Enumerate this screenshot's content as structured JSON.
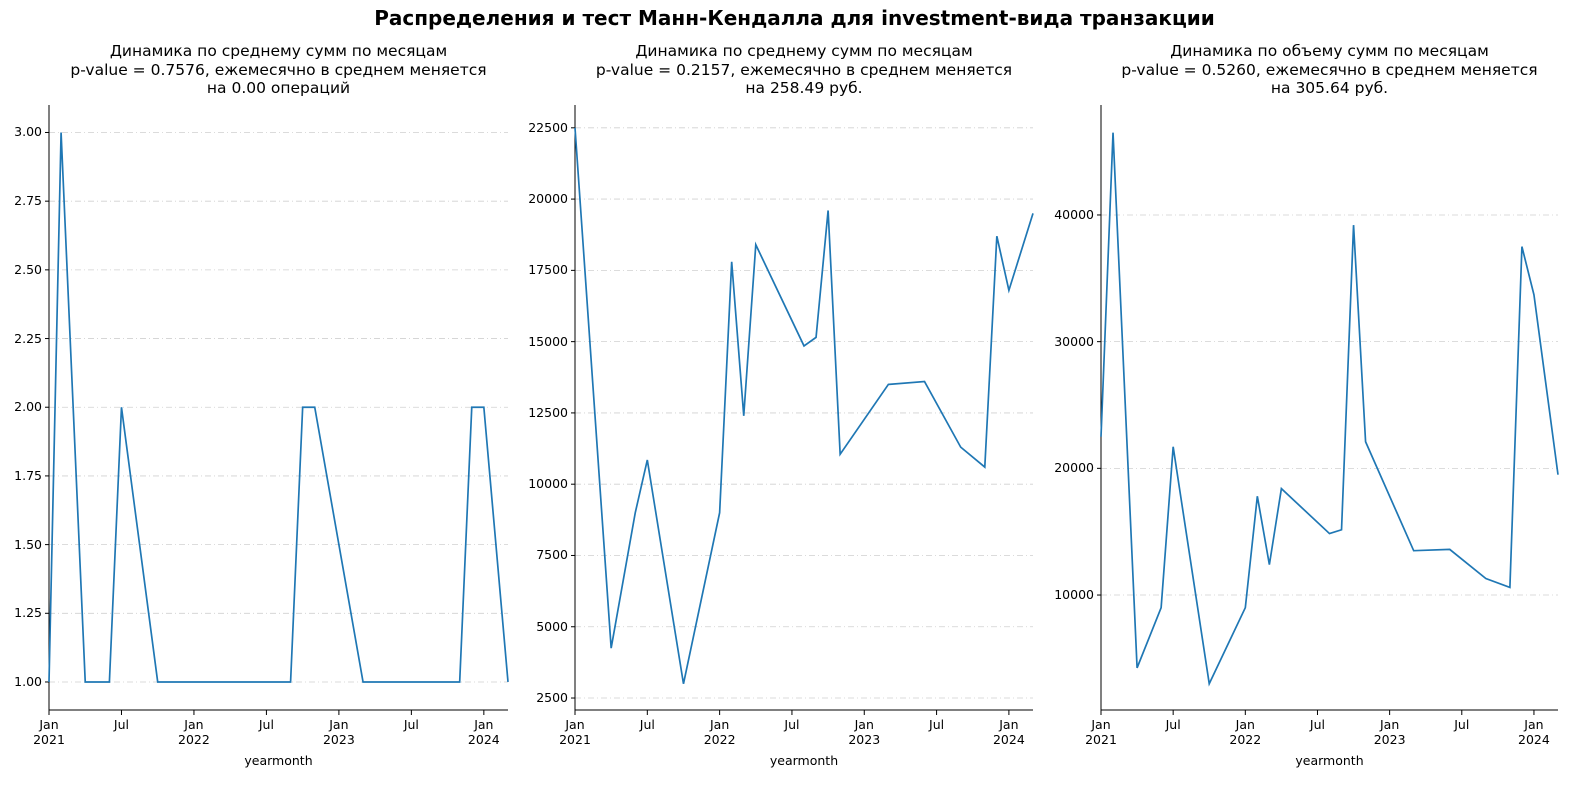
{
  "title": "Распределения и тест Манн-Кендалла для investment-вида транзакции",
  "chart_data": [
    {
      "type": "line",
      "title": "Динамика по среднему сумм по месяцам\np-value = 0.7576, ежемесячно в среднем меняется\nна 0.00 операций",
      "xlabel": "yearmonth",
      "x": [
        "2021-01",
        "2021-02",
        "2021-04",
        "2021-06",
        "2021-07",
        "2021-10",
        "2022-09",
        "2022-10",
        "2022-11",
        "2023-03",
        "2023-11",
        "2023-12",
        "2024-01",
        "2024-03"
      ],
      "values": [
        1,
        3,
        1,
        1,
        2,
        1,
        1,
        2,
        2,
        1,
        1,
        2,
        2,
        1
      ],
      "color": "#1f77b4",
      "xlim": [
        "2021-01",
        "2024-03"
      ],
      "xticks": [
        {
          "value": "2021-01",
          "label": "Jan\n2021"
        },
        {
          "value": "2021-07",
          "label": "Jul"
        },
        {
          "value": "2022-01",
          "label": "Jan\n2022"
        },
        {
          "value": "2022-07",
          "label": "Jul"
        },
        {
          "value": "2023-01",
          "label": "Jan\n2023"
        },
        {
          "value": "2023-07",
          "label": "Jul"
        },
        {
          "value": "2024-01",
          "label": "Jan\n2024"
        }
      ],
      "ylim": [
        0.898,
        3.1
      ],
      "yticks": [
        {
          "value": 1,
          "label": "1.00"
        },
        {
          "value": 1.25,
          "label": "1.25"
        },
        {
          "value": 1.5,
          "label": "1.50"
        },
        {
          "value": 1.75,
          "label": "1.75"
        },
        {
          "value": 2,
          "label": "2.00"
        },
        {
          "value": 2.25,
          "label": "2.25"
        },
        {
          "value": 2.5,
          "label": "2.50"
        },
        {
          "value": 2.75,
          "label": "2.75"
        },
        {
          "value": 3,
          "label": "3.00"
        }
      ],
      "grid": true
    },
    {
      "type": "line",
      "title": "Динамика по среднему сумм по месяцам\np-value = 0.2157, ежемесячно в среднем меняется\nна 258.49 руб.",
      "xlabel": "yearmonth",
      "x": [
        "2021-01",
        "2021-04",
        "2021-06",
        "2021-07",
        "2021-10",
        "2022-01",
        "2022-02",
        "2022-03",
        "2022-04",
        "2022-08",
        "2022-09",
        "2022-10",
        "2022-11",
        "2023-03",
        "2023-06",
        "2023-09",
        "2023-11",
        "2023-12",
        "2024-01",
        "2024-03"
      ],
      "values": [
        22500,
        4250,
        9000,
        10850,
        3000,
        9000,
        17800,
        12400,
        18400,
        14850,
        15150,
        19600,
        11050,
        13500,
        13600,
        11300,
        10600,
        18700,
        16800,
        19500
      ],
      "color": "#1f77b4",
      "xlim": [
        "2021-01",
        "2024-03"
      ],
      "xticks": [
        {
          "value": "2021-01",
          "label": "Jan\n2021"
        },
        {
          "value": "2021-07",
          "label": "Jul"
        },
        {
          "value": "2022-01",
          "label": "Jan\n2022"
        },
        {
          "value": "2022-07",
          "label": "Jul"
        },
        {
          "value": "2023-01",
          "label": "Jan\n2023"
        },
        {
          "value": "2023-07",
          "label": "Jul"
        },
        {
          "value": "2024-01",
          "label": "Jan\n2024"
        }
      ],
      "ylim": [
        2080,
        23300
      ],
      "yticks": [
        2500,
        5000,
        7500,
        10000,
        12500,
        15000,
        17500,
        20000,
        22500
      ],
      "grid": true
    },
    {
      "type": "line",
      "title": "Динамика по объему сумм по месяцам\np-value = 0.5260, ежемесячно в среднем меняется\nна 305.64 руб.",
      "xlabel": "yearmonth",
      "x": [
        "2021-01",
        "2021-02",
        "2021-04",
        "2021-06",
        "2021-07",
        "2021-10",
        "2022-01",
        "2022-02",
        "2022-03",
        "2022-04",
        "2022-08",
        "2022-09",
        "2022-10",
        "2022-11",
        "2023-03",
        "2023-06",
        "2023-09",
        "2023-11",
        "2023-12",
        "2024-01",
        "2024-03"
      ],
      "values": [
        22500,
        46500,
        4250,
        9000,
        21700,
        3000,
        9000,
        17800,
        12400,
        18400,
        14850,
        15150,
        39200,
        22100,
        13500,
        13600,
        11300,
        10600,
        37500,
        33700,
        19500
      ],
      "color": "#1f77b4",
      "xlim": [
        "2021-01",
        "2024-03"
      ],
      "xticks": [
        {
          "value": "2021-01",
          "label": "Jan\n2021"
        },
        {
          "value": "2021-07",
          "label": "Jul"
        },
        {
          "value": "2022-01",
          "label": "Jan\n2022"
        },
        {
          "value": "2022-07",
          "label": "Jul"
        },
        {
          "value": "2023-01",
          "label": "Jan\n2023"
        },
        {
          "value": "2023-07",
          "label": "Jul"
        },
        {
          "value": "2024-01",
          "label": "Jan\n2024"
        }
      ],
      "ylim": [
        925,
        48680
      ],
      "yticks": [
        10000,
        20000,
        30000,
        40000
      ],
      "grid": true
    }
  ]
}
